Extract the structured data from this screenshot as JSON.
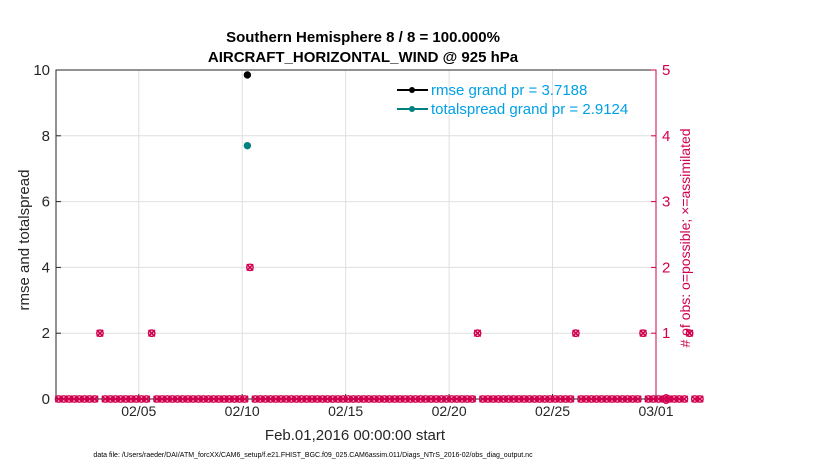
{
  "chart_data": {
    "type": "scatter",
    "title_line1": "Southern Hemisphere 8 / 8 = 100.000%",
    "title_line2": "AIRCRAFT_HORIZONTAL_WIND @ 925 hPa",
    "xlabel": "Feb.01,2016 00:00:00 start",
    "ylabel_left": "rmse and totalspread",
    "ylabel_right": "# of obs: o=possible; ×=assimilated",
    "footnote": "data file: /Users/raeder/DAI/ATM_forcXX/CAM6_setup/f.e21.FHIST_BGC.f09_025.CAM6assim.011/Diags_NTrS_2016-02/obs_diag_output.nc",
    "x_range": [
      0.5,
      29.5
    ],
    "x_ticks": [
      {
        "value": 4.5,
        "label": "02/05"
      },
      {
        "value": 9.5,
        "label": "02/10"
      },
      {
        "value": 14.5,
        "label": "02/15"
      },
      {
        "value": 19.5,
        "label": "02/20"
      },
      {
        "value": 24.5,
        "label": "02/25"
      },
      {
        "value": 29.5,
        "label": "03/01"
      }
    ],
    "y_left_range": [
      0,
      10
    ],
    "y_left_ticks": [
      "0",
      "2",
      "4",
      "6",
      "8",
      "10"
    ],
    "y_right_range": [
      0,
      5
    ],
    "y_right_ticks": [
      "0",
      "1",
      "2",
      "3",
      "4",
      "5"
    ],
    "grid": true,
    "legend_position": "top-right",
    "series": [
      {
        "name": "rmse grand pr = 3.7188",
        "color": "#000000",
        "points": [
          {
            "x": 9.75,
            "y": 9.85
          }
        ]
      },
      {
        "name": "totalspread grand pr = 2.9124",
        "color": "#008080",
        "points": [
          {
            "x": 9.75,
            "y": 7.7
          }
        ]
      }
    ],
    "obs_count": {
      "color": "#d1004f",
      "x_start": 0.625,
      "x_step": 0.25,
      "counts": [
        0,
        0,
        0,
        0,
        0,
        0,
        0,
        0,
        1,
        0,
        0,
        0,
        0,
        0,
        0,
        0,
        0,
        0,
        1,
        0,
        0,
        0,
        0,
        0,
        0,
        0,
        0,
        0,
        0,
        0,
        0,
        0,
        0,
        0,
        0,
        0,
        0,
        2,
        0,
        0,
        0,
        0,
        0,
        0,
        0,
        0,
        0,
        0,
        0,
        0,
        0,
        0,
        0,
        0,
        0,
        0,
        0,
        0,
        0,
        0,
        0,
        0,
        0,
        0,
        0,
        0,
        0,
        0,
        0,
        0,
        0,
        0,
        0,
        0,
        0,
        0,
        0,
        0,
        0,
        0,
        0,
        1,
        0,
        0,
        0,
        0,
        0,
        0,
        0,
        0,
        0,
        0,
        0,
        0,
        0,
        0,
        0,
        0,
        0,
        0,
        1,
        0,
        0,
        0,
        0,
        0,
        0,
        0,
        0,
        0,
        0,
        0,
        0,
        1,
        0,
        0,
        0,
        0,
        0,
        0,
        0,
        0,
        1,
        0,
        0
      ]
    }
  }
}
